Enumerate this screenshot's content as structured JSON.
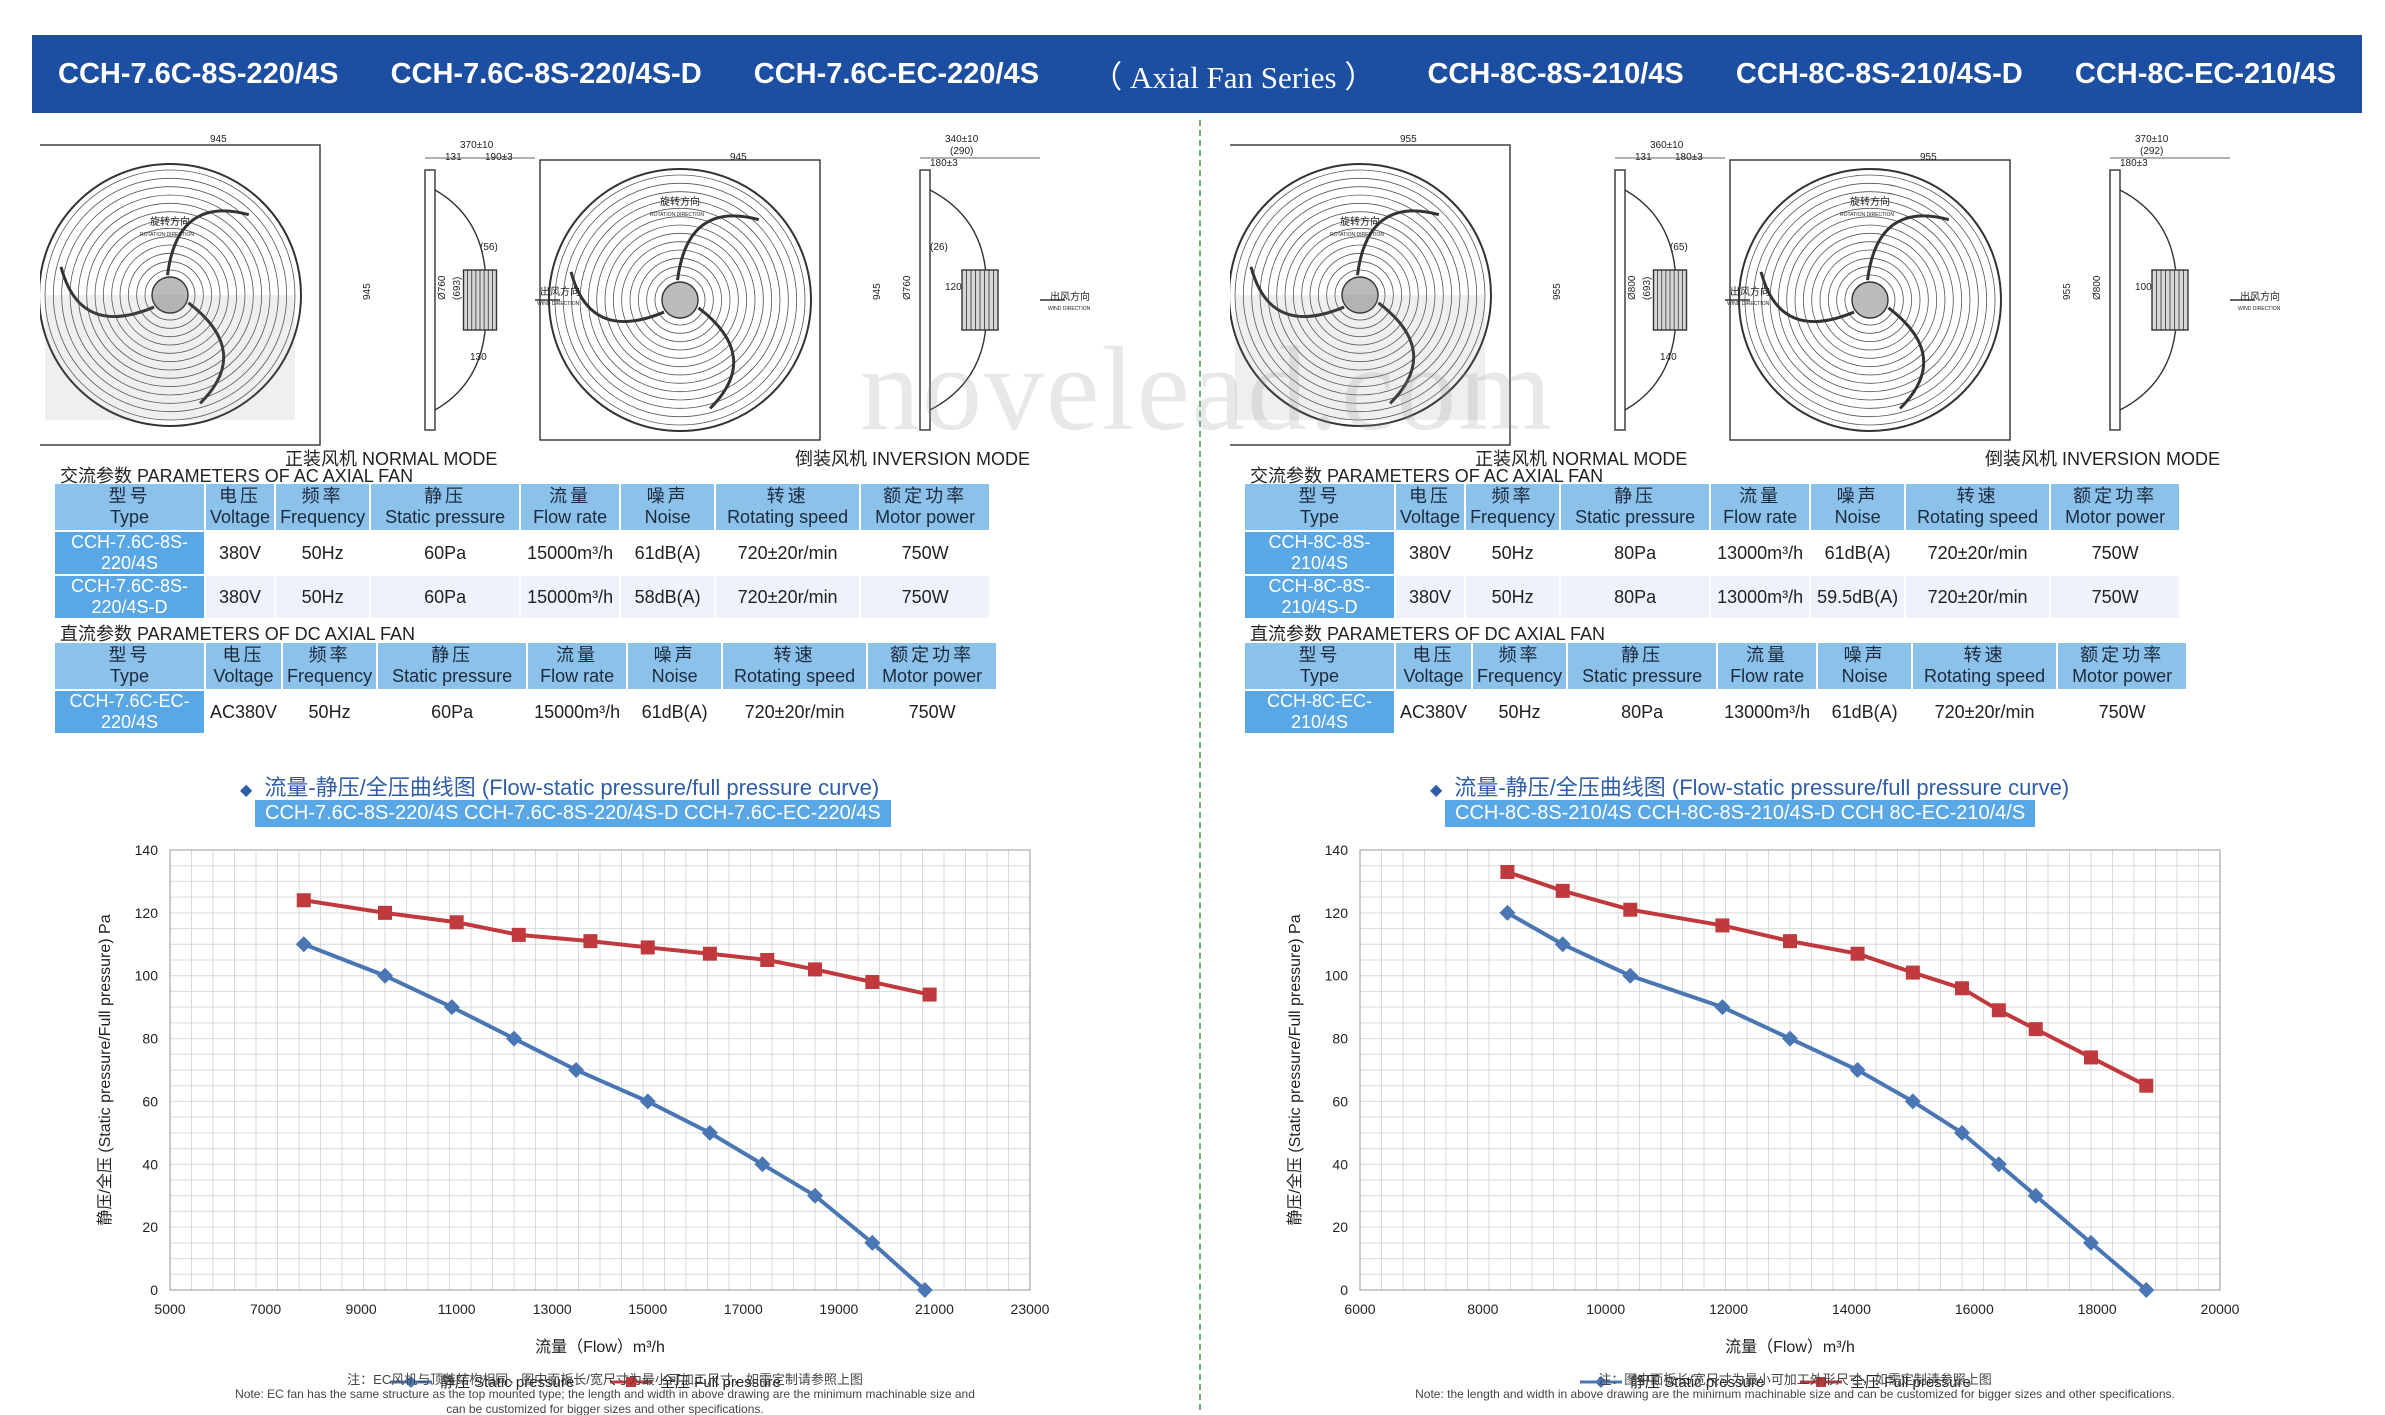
{
  "banner": {
    "m1": "CCH-7.6C-8S-220/4S",
    "m2": "CCH-7.6C-8S-220/4S-D",
    "m3": "CCH-7.6C-EC-220/4S",
    "series": "（ Axial Fan Series ）",
    "m4": "CCH-8C-8S-210/4S",
    "m5": "CCH-8C-8S-210/4S-D",
    "m6": "CCH-8C-EC-210/4S"
  },
  "watermark": "novelead.com",
  "left": {
    "drawing": {
      "front_width": "945",
      "front_height": "945",
      "diameter": "Ø760",
      "diameter_paren": "(693)",
      "side_top": "370±10",
      "side_a": "131",
      "side_b": "190±3",
      "side_small": "(56)",
      "side_bottom": "130",
      "inv_width": "945",
      "inv_height": "945",
      "inv_diameter": "Ø760",
      "inv_top": "340±10",
      "inv_paren": "(290)",
      "inv_b": "180±3",
      "inv_small": "(26)",
      "inv_c": "120",
      "rot_zh": "旋转方向",
      "rot_en": "ROTATION DIRECTION",
      "wind_zh": "出风方向",
      "wind_en": "WIND DIRECTION"
    },
    "normal_mode": "正装风机  NORMAL MODE",
    "inversion_mode": "倒装风机  INVERSION MODE",
    "ac_title": "交流参数  PARAMETERS OF AC AXIAL FAN",
    "dc_title": "直流参数  PARAMETERS OF DC AXIAL FAN",
    "headers": [
      {
        "zh": "型号",
        "en": "Type"
      },
      {
        "zh": "电压",
        "en": "Voltage"
      },
      {
        "zh": "频率",
        "en": "Frequency"
      },
      {
        "zh": "静压",
        "en": "Static pressure"
      },
      {
        "zh": "流量",
        "en": "Flow rate"
      },
      {
        "zh": "噪声",
        "en": "Noise"
      },
      {
        "zh": "转速",
        "en": "Rotating speed"
      },
      {
        "zh": "额定功率",
        "en": "Motor power"
      }
    ],
    "ac_rows": [
      [
        "CCH-7.6C-8S-220/4S",
        "380V",
        "50Hz",
        "60Pa",
        "15000m³/h",
        "61dB(A)",
        "720±20r/min",
        "750W"
      ],
      [
        "CCH-7.6C-8S-220/4S-D",
        "380V",
        "50Hz",
        "60Pa",
        "15000m³/h",
        "58dB(A)",
        "720±20r/min",
        "750W"
      ]
    ],
    "dc_rows": [
      [
        "CCH-7.6C-EC-220/4S",
        "AC380V",
        "50Hz",
        "60Pa",
        "15000m³/h",
        "61dB(A)",
        "720±20r/min",
        "750W"
      ]
    ],
    "curve_title": "流量-静压/全压曲线图 (Flow-static pressure/full pressure curve)",
    "curve_models": "CCH-7.6C-8S-220/4S  CCH-7.6C-8S-220/4S-D  CCH-7.6C-EC-220/4S",
    "chart_data": {
      "type": "line",
      "xlabel": "流量（Flow）m³/h",
      "ylabel": "静压/全压 (Static pressure/Full pressure) Pa",
      "xlim": [
        5000,
        23000
      ],
      "ylim": [
        0,
        140
      ],
      "xticks": [
        5000,
        7000,
        9000,
        11000,
        13000,
        15000,
        17000,
        19000,
        21000,
        23000
      ],
      "yticks": [
        0,
        20,
        40,
        60,
        80,
        100,
        120,
        140
      ],
      "grid": true,
      "legend": "bottom",
      "series": [
        {
          "name": "静压 Static pressure",
          "color": "#4a77b4",
          "marker": "diamond",
          "x": [
            7800,
            9500,
            10900,
            12200,
            13500,
            15000,
            16300,
            17400,
            18500,
            19700,
            20800
          ],
          "y": [
            110,
            100,
            90,
            80,
            70,
            60,
            50,
            40,
            30,
            15,
            0
          ]
        },
        {
          "name": "全压 Full pressure",
          "color": "#c0393d",
          "marker": "square",
          "x": [
            7800,
            9500,
            11000,
            12300,
            13800,
            15000,
            16300,
            17500,
            18500,
            19700,
            20900
          ],
          "y": [
            124,
            120,
            117,
            113,
            111,
            109,
            107,
            105,
            102,
            98,
            94
          ]
        }
      ]
    },
    "note_zh": "注：EC风机与顶装结构相同，图中面板长/宽尺寸为最小可加工尺寸，如需定制请参照上图",
    "note_en1": "Note: EC fan has the same structure as the top mounted type; the length and width in above drawing are the minimum machinable size and",
    "note_en2": "can be customized for bigger sizes and other specifications."
  },
  "right": {
    "drawing": {
      "front_width": "955",
      "front_height": "955",
      "diameter": "Ø800",
      "diameter_paren": "(693)",
      "side_top": "360±10",
      "side_a": "131",
      "side_b": "180±3",
      "side_small": "(65)",
      "side_bottom": "140",
      "inv_width": "955",
      "inv_height": "955",
      "inv_diameter": "Ø800",
      "inv_top": "370±10",
      "inv_paren": "(292)",
      "inv_b": "180±3",
      "inv_small": "",
      "inv_c": "100",
      "rot_zh": "旋转方向",
      "rot_en": "ROTATION DIRECTION",
      "wind_zh": "出风方向",
      "wind_en": "WIND DIRECTION"
    },
    "normal_mode": "正装风机  NORMAL MODE",
    "inversion_mode": "倒装风机  INVERSION MODE",
    "ac_title": "交流参数  PARAMETERS OF AC AXIAL FAN",
    "dc_title": "直流参数  PARAMETERS OF DC AXIAL FAN",
    "headers": [
      {
        "zh": "型号",
        "en": "Type"
      },
      {
        "zh": "电压",
        "en": "Voltage"
      },
      {
        "zh": "频率",
        "en": "Frequency"
      },
      {
        "zh": "静压",
        "en": "Static pressure"
      },
      {
        "zh": "流量",
        "en": "Flow rate"
      },
      {
        "zh": "噪声",
        "en": "Noise"
      },
      {
        "zh": "转速",
        "en": "Rotating speed"
      },
      {
        "zh": "额定功率",
        "en": "Motor power"
      }
    ],
    "ac_rows": [
      [
        "CCH-8C-8S-210/4S",
        "380V",
        "50Hz",
        "80Pa",
        "13000m³/h",
        "61dB(A)",
        "720±20r/min",
        "750W"
      ],
      [
        "CCH-8C-8S-210/4S-D",
        "380V",
        "50Hz",
        "80Pa",
        "13000m³/h",
        "59.5dB(A)",
        "720±20r/min",
        "750W"
      ]
    ],
    "dc_rows": [
      [
        "CCH-8C-EC-210/4S",
        "AC380V",
        "50Hz",
        "80Pa",
        "13000m³/h",
        "61dB(A)",
        "720±20r/min",
        "750W"
      ]
    ],
    "curve_title": "流量-静压/全压曲线图 (Flow-static pressure/full pressure curve)",
    "curve_models": "CCH-8C-8S-210/4S  CCH-8C-8S-210/4S-D  CCH 8C-EC-210/4/S",
    "chart_data": {
      "type": "line",
      "xlabel": "流量（Flow）m³/h",
      "ylabel": "静压/全压 (Static pressure/Full pressure) Pa",
      "xlim": [
        6000,
        20000
      ],
      "ylim": [
        0,
        140
      ],
      "xticks": [
        6000,
        8000,
        10000,
        12000,
        14000,
        16000,
        18000,
        20000
      ],
      "yticks": [
        0,
        20,
        40,
        60,
        80,
        100,
        120,
        140
      ],
      "grid": true,
      "legend": "bottom",
      "series": [
        {
          "name": "静压 Static pressure",
          "color": "#4a77b4",
          "marker": "diamond",
          "x": [
            8400,
            9300,
            10400,
            11900,
            13000,
            14100,
            15000,
            15800,
            16400,
            17000,
            17900,
            18800
          ],
          "y": [
            120,
            110,
            100,
            90,
            80,
            70,
            60,
            50,
            40,
            30,
            15,
            0
          ]
        },
        {
          "name": "全压 Full pressure",
          "color": "#c0393d",
          "marker": "square",
          "x": [
            8400,
            9300,
            10400,
            11900,
            13000,
            14100,
            15000,
            15800,
            16400,
            17000,
            17900,
            18800
          ],
          "y": [
            133,
            127,
            121,
            116,
            111,
            107,
            101,
            96,
            89,
            83,
            74,
            65
          ]
        }
      ]
    },
    "note_zh": "注：图中面板长/宽尺寸为最小可加工外形尺寸，如需定制请参照上图",
    "note_en1": "Note: the length and width in above drawing are the minimum machinable size and can be customized for bigger sizes and other specifications.",
    "note_en2": ""
  }
}
